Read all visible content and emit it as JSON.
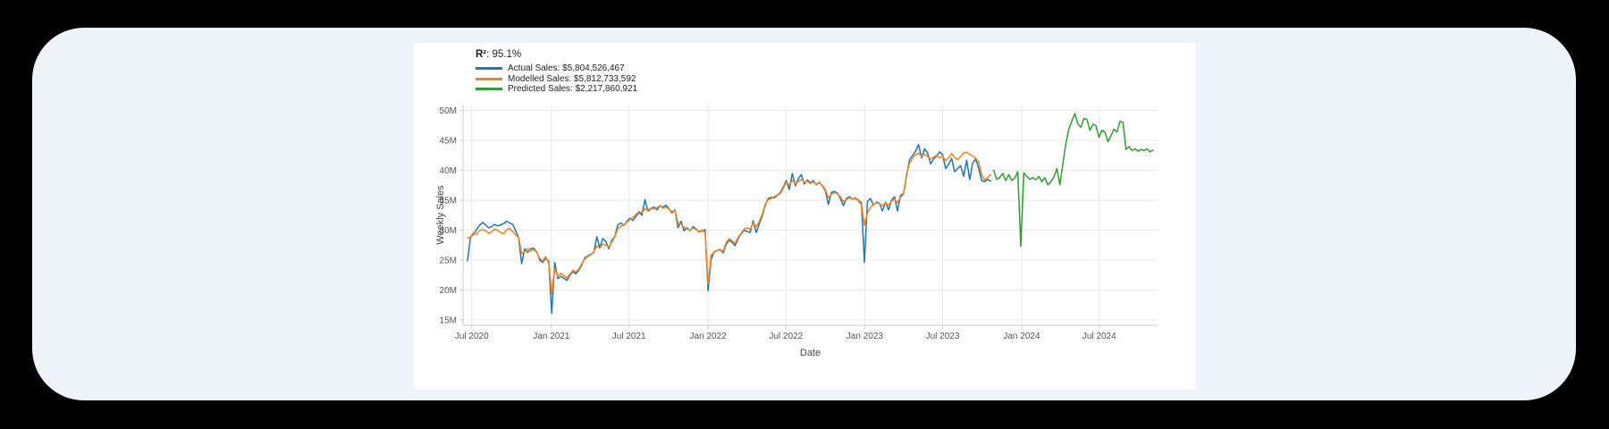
{
  "page": {
    "outer_background": "#000000",
    "panel_background": "#eff4fb",
    "card_background": "#ffffff"
  },
  "chart_data": {
    "type": "line",
    "r2_bold": "R²",
    "r2_rest": ": 95.1%",
    "xlabel": "Date",
    "ylabel": "Weekly Sales",
    "values_unit": "millions_usd",
    "x_unit": "week_index_from_2020-06-21",
    "ylim": [
      14.1,
      51.0
    ],
    "xlim": [
      -1.5,
      229.5
    ],
    "grid": true,
    "legend_position": "top-left",
    "axis_color": "#cccccc",
    "grid_color": "#e8e8e8",
    "tick_text_color": "#555555",
    "axis_label_color": "#444444",
    "yticks": [
      {
        "value": 15,
        "label": "15M"
      },
      {
        "value": 20,
        "label": "20M"
      },
      {
        "value": 25,
        "label": "25M"
      },
      {
        "value": 30,
        "label": "30M"
      },
      {
        "value": 35,
        "label": "35M"
      },
      {
        "value": 40,
        "label": "40M"
      },
      {
        "value": 45,
        "label": "45M"
      },
      {
        "value": 50,
        "label": "50M"
      }
    ],
    "xticks": [
      {
        "pos": 1.4,
        "label": "Jul 2020"
      },
      {
        "pos": 27.9,
        "label": "Jan 2021"
      },
      {
        "pos": 53.7,
        "label": "Jul 2021"
      },
      {
        "pos": 80.0,
        "label": "Jan 2022"
      },
      {
        "pos": 105.9,
        "label": "Jul 2022"
      },
      {
        "pos": 132.1,
        "label": "Jan 2023"
      },
      {
        "pos": 158.0,
        "label": "Jul 2023"
      },
      {
        "pos": 184.3,
        "label": "Jan 2024"
      },
      {
        "pos": 210.1,
        "label": "Jul 2024"
      }
    ],
    "series": [
      {
        "name": "Actual Sales",
        "legend": "Actual Sales: $5,804,526,467",
        "total": "$5,804,526,467",
        "color": "#1f77b4",
        "start": 0,
        "values": [
          24.9,
          28.9,
          29.3,
          30.1,
          30.8,
          31.3,
          30.9,
          30.4,
          30.6,
          31.0,
          30.7,
          30.9,
          31.1,
          31.5,
          31.2,
          31.0,
          29.9,
          28.7,
          24.4,
          26.9,
          26.3,
          26.9,
          27.0,
          26.4,
          25.0,
          24.6,
          25.3,
          24.8,
          16.1,
          24.6,
          21.9,
          22.3,
          22.0,
          21.6,
          22.4,
          23.1,
          22.7,
          23.3,
          24.2,
          25.4,
          25.7,
          26.0,
          26.3,
          28.9,
          27.1,
          28.6,
          28.1,
          26.9,
          28.3,
          29.0,
          30.9,
          31.2,
          30.8,
          31.5,
          32.0,
          31.6,
          32.3,
          33.0,
          32.5,
          35.1,
          33.2,
          33.6,
          33.9,
          33.4,
          34.1,
          33.8,
          34.2,
          33.6,
          32.9,
          33.4,
          30.4,
          31.5,
          29.9,
          30.4,
          29.9,
          30.6,
          30.2,
          29.7,
          29.9,
          30.1,
          19.9,
          25.1,
          26.4,
          26.6,
          26.8,
          26.2,
          27.6,
          28.3,
          28.0,
          27.4,
          28.6,
          29.4,
          30.0,
          29.8,
          29.6,
          31.6,
          29.6,
          31.0,
          32.4,
          34.1,
          35.3,
          35.5,
          35.4,
          35.8,
          36.3,
          37.2,
          38.3,
          36.8,
          39.5,
          37.4,
          38.6,
          39.3,
          37.7,
          38.4,
          37.9,
          38.3,
          37.6,
          38.0,
          37.4,
          36.6,
          34.3,
          36.3,
          36.5,
          36.2,
          35.3,
          34.1,
          35.3,
          35.6,
          35.2,
          35.4,
          35.0,
          34.6,
          24.6,
          34.8,
          35.3,
          34.2,
          34.7,
          34.5,
          33.2,
          34.7,
          33.4,
          35.0,
          35.6,
          33.2,
          35.8,
          36.1,
          39.0,
          41.8,
          42.5,
          43.2,
          44.3,
          42.1,
          43.6,
          42.9,
          41.1,
          41.9,
          42.4,
          43.1,
          42.6,
          40.3,
          41.0,
          42.0,
          39.8,
          40.3,
          40.8,
          39.0,
          41.7,
          38.5,
          41.2,
          41.9,
          40.3,
          38.3,
          38.1,
          38.5,
          38.2
        ]
      },
      {
        "name": "Modelled Sales",
        "legend": "Modelled Sales: $5,812,733,592",
        "total": "$5,812,733,592",
        "color": "#ff7f0e",
        "start": 0,
        "values": [
          28.7,
          28.8,
          29.6,
          29.3,
          30.0,
          30.1,
          29.9,
          29.5,
          29.7,
          30.2,
          30.0,
          29.6,
          29.4,
          30.1,
          30.3,
          29.8,
          29.2,
          28.8,
          26.1,
          26.4,
          26.9,
          26.5,
          26.8,
          26.3,
          25.3,
          24.8,
          25.6,
          24.4,
          19.4,
          23.6,
          22.3,
          22.8,
          22.4,
          22.0,
          22.6,
          23.3,
          23.0,
          23.5,
          24.4,
          25.2,
          25.6,
          25.9,
          26.4,
          27.4,
          27.0,
          27.7,
          27.5,
          27.2,
          28.0,
          28.9,
          30.3,
          30.7,
          30.9,
          31.3,
          31.8,
          32.1,
          32.6,
          33.1,
          32.9,
          33.6,
          33.4,
          33.7,
          33.5,
          33.8,
          34.0,
          33.7,
          33.9,
          33.5,
          33.1,
          33.3,
          31.2,
          31.0,
          30.5,
          30.2,
          30.0,
          30.4,
          30.1,
          29.8,
          30.0,
          29.6,
          21.0,
          25.8,
          26.3,
          26.6,
          26.7,
          26.5,
          27.9,
          28.6,
          28.2,
          27.8,
          28.8,
          29.5,
          30.2,
          30.4,
          30.1,
          31.2,
          30.6,
          31.4,
          32.7,
          34.3,
          35.1,
          35.3,
          35.6,
          35.9,
          36.1,
          37.0,
          38.0,
          37.6,
          38.3,
          37.8,
          38.1,
          38.5,
          38.0,
          38.2,
          37.8,
          38.1,
          37.7,
          37.9,
          37.5,
          36.8,
          35.4,
          36.0,
          36.3,
          36.1,
          35.6,
          34.8,
          35.1,
          35.4,
          35.2,
          35.3,
          34.9,
          34.3,
          30.8,
          32.9,
          33.8,
          34.3,
          34.6,
          34.4,
          34.1,
          34.5,
          34.2,
          34.8,
          35.2,
          34.6,
          35.5,
          36.0,
          39.3,
          41.2,
          42.0,
          42.6,
          42.9,
          42.4,
          42.7,
          42.3,
          41.9,
          42.2,
          42.5,
          42.1,
          42.4,
          41.6,
          42.1,
          42.8,
          42.2,
          41.8,
          42.3,
          42.9,
          43.0,
          42.7,
          42.4,
          42.0,
          41.4,
          39.2,
          38.4,
          38.8,
          39.3
        ]
      },
      {
        "name": "Predicted Sales",
        "legend": "Predicted Sales: $2,217,860,921",
        "total": "$2,217,860,921",
        "color": "#2ca02c",
        "start": 175,
        "values": [
          40.0,
          38.5,
          38.8,
          39.5,
          38.3,
          39.3,
          38.3,
          38.7,
          39.8,
          27.3,
          39.6,
          39.0,
          38.5,
          38.8,
          38.4,
          39.0,
          38.1,
          38.8,
          37.6,
          38.1,
          38.9,
          40.3,
          37.6,
          41.0,
          44.5,
          47.0,
          48.2,
          49.5,
          47.7,
          47.2,
          48.7,
          48.5,
          46.7,
          47.7,
          47.5,
          45.5,
          46.7,
          46.4,
          44.8,
          45.8,
          46.9,
          46.4,
          48.2,
          48.0,
          43.5,
          44.0,
          43.3,
          43.6,
          43.2,
          43.5,
          43.3,
          43.6,
          43.1,
          43.4
        ]
      }
    ]
  }
}
